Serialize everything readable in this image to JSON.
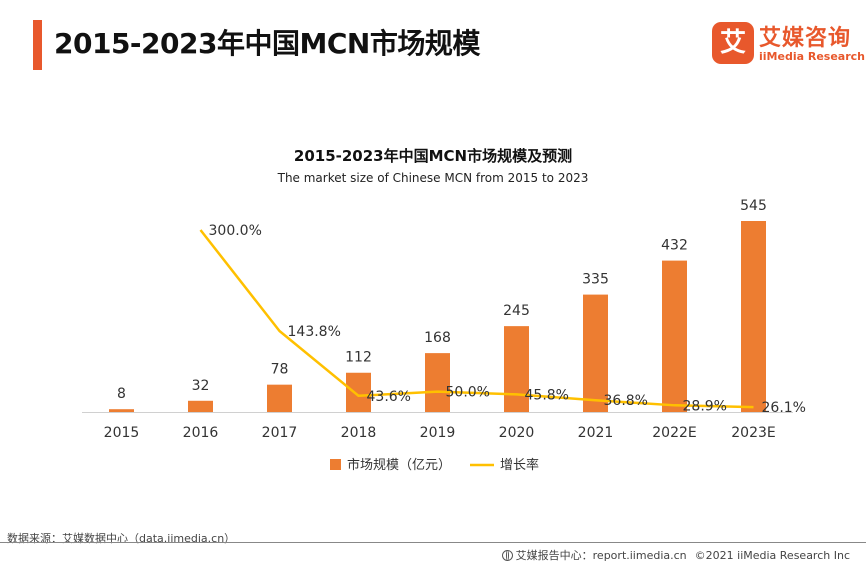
{
  "header": {
    "title": "2015-2023年中国MCN市场规模",
    "logo_mark": "艾",
    "logo_cn": "艾媒咨询",
    "logo_en": "iiMedia Research"
  },
  "chart_data": {
    "type": "bar",
    "title": "2015-2023年中国MCN市场规模及预测",
    "subtitle": "The  market size of Chinese MCN from 2015 to 2023",
    "categories": [
      "2015",
      "2016",
      "2017",
      "2018",
      "2019",
      "2020",
      "2021",
      "2022E",
      "2023E"
    ],
    "series": [
      {
        "name": "市场规模（亿元）",
        "type": "bar",
        "color": "#ed7d31",
        "values": [
          8,
          32,
          78,
          112,
          168,
          245,
          335,
          432,
          545
        ],
        "labels": [
          "8",
          "32",
          "78",
          "112",
          "168",
          "245",
          "335",
          "432",
          "545"
        ]
      },
      {
        "name": "增长率",
        "type": "line",
        "color": "#ffc000",
        "values": [
          null,
          300.0,
          143.8,
          43.6,
          50.0,
          45.8,
          36.8,
          28.9,
          26.1
        ],
        "labels": [
          "",
          "300.0%",
          "143.8%",
          "43.6%",
          "50.0%",
          "45.8%",
          "36.8%",
          "28.9%",
          "26.1%"
        ]
      }
    ],
    "legend": "bottom",
    "grid": false
  },
  "footer": {
    "source": "数据来源：艾媒数据中心（data.iimedia.cn）",
    "report_site": "艾媒报告中心：report.iimedia.cn",
    "copyright": "©2021  iiMedia Research  Inc"
  }
}
